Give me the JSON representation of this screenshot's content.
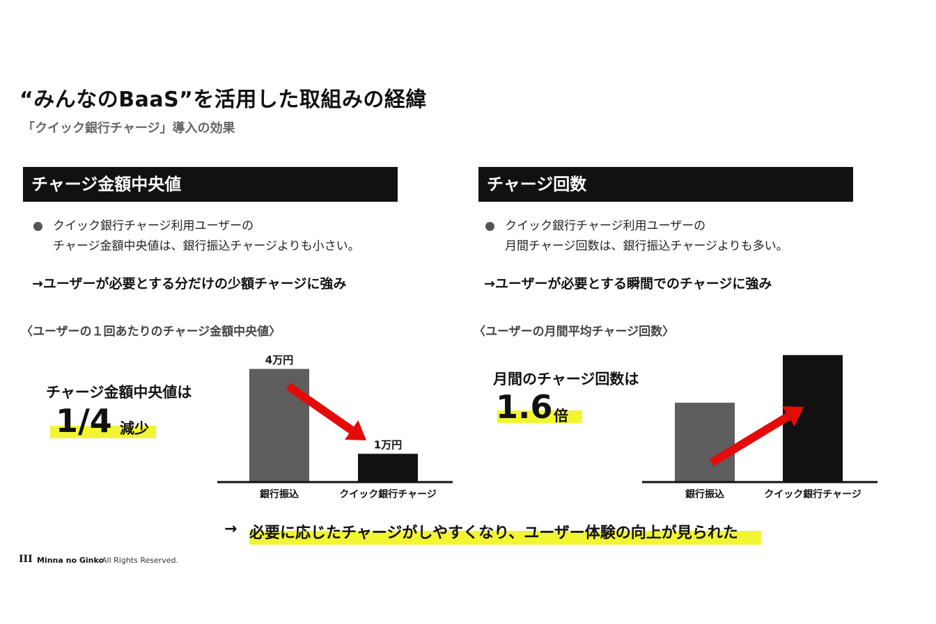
{
  "header": {
    "title": "“みんなのBaaS”を活用した取組みの経緯",
    "subtitle": "「クイック銀行チャージ」導入の効果"
  },
  "left_panel": {
    "heading": "チャージ金額中央値",
    "bullet_line1": "クイック銀行チャージ利用ユーザーの",
    "bullet_line2": "チャージ金額中央値は、銀行振込チャージよりも小さい。",
    "conclusion": "→ユーザーが必要とする分だけの少額チャージに強み",
    "chart_caption": "〈ユーザーの１回あたりのチャージ金額中央値〉",
    "callout_label": "チャージ金額中央値は",
    "callout_value": "1/4",
    "callout_suffix": "減少"
  },
  "right_panel": {
    "heading": "チャージ回数",
    "bullet_line1": "クイック銀行チャージ利用ユーザーの",
    "bullet_line2": "月間チャージ回数は、銀行振込チャージよりも多い。",
    "conclusion": "→ユーザーが必要とする瞬間でのチャージに強み",
    "chart_caption": "〈ユーザーの月間平均チャージ回数〉",
    "callout_label": "月間のチャージ回数は",
    "callout_value": "1.6",
    "callout_suffix": "倍"
  },
  "summary": {
    "arrow": "→",
    "text": "必要に応じたチャージがしやすくなり、ユーザー体験の向上が見られた"
  },
  "footer": {
    "logo_mark": "III",
    "brand": "Minna no Ginko",
    "rights": "All Rights Reserved."
  },
  "colors": {
    "highlight": "#f2f531",
    "bar_gray": "#5e5e5e",
    "bar_black": "#111111",
    "arrow_red": "#e50b0b",
    "heading_bg": "#111111"
  },
  "chart_data": [
    {
      "type": "bar",
      "categories": [
        "銀行振込",
        "クイック銀行チャージ"
      ],
      "values": [
        40000,
        10000
      ],
      "data_labels": [
        "4万円",
        "1万円"
      ],
      "ylim": [
        0,
        45000
      ],
      "annotation": "decreasing red arrow",
      "grid": false
    },
    {
      "type": "bar",
      "categories": [
        "銀行振込",
        "クイック銀行チャージ"
      ],
      "values": [
        1.0,
        1.6
      ],
      "data_labels": [
        "",
        ""
      ],
      "ylim": [
        0,
        1.7
      ],
      "annotation": "increasing red arrow",
      "grid": false
    }
  ]
}
